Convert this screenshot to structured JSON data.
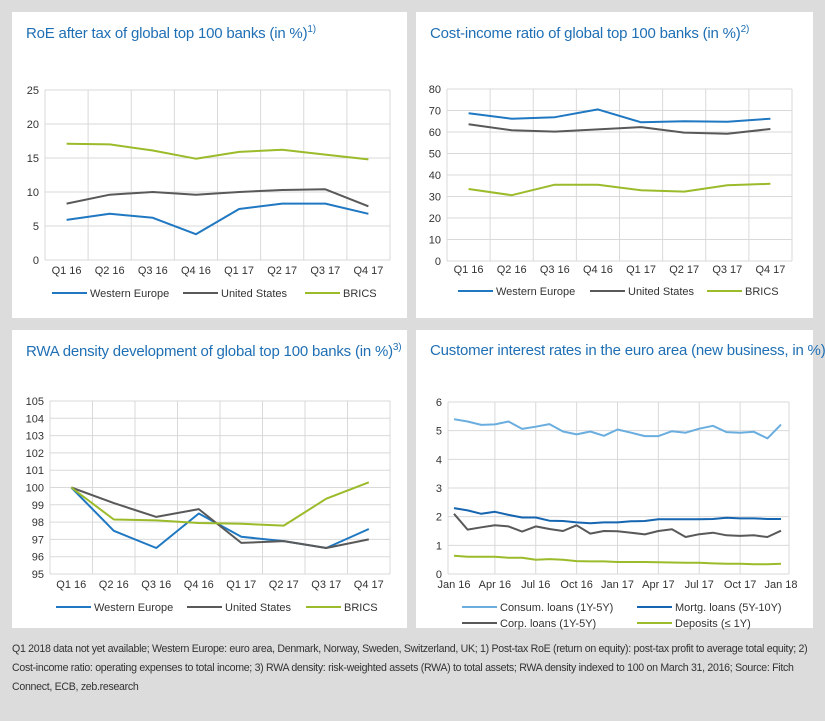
{
  "chart_data": [
    {
      "type": "line",
      "title": "RoE after tax of global top 100 banks (in %)",
      "title_note": "1)",
      "categories": [
        "Q1 16",
        "Q2 16",
        "Q3 16",
        "Q4 16",
        "Q1 17",
        "Q2 17",
        "Q3 17",
        "Q4 17"
      ],
      "ylim": [
        0,
        25
      ],
      "yticks": [
        0,
        5,
        10,
        15,
        20,
        25
      ],
      "grid": true,
      "legend": "bottom",
      "series": [
        {
          "name": "Western Europe",
          "color": "#1f78c1",
          "values": [
            5.9,
            6.8,
            6.2,
            3.8,
            7.5,
            8.3,
            8.3,
            6.8
          ]
        },
        {
          "name": "United States",
          "color": "#595959",
          "values": [
            8.3,
            9.6,
            10.0,
            9.6,
            10.0,
            10.3,
            10.4,
            7.9
          ]
        },
        {
          "name": "BRICS",
          "color": "#9bbb2a",
          "values": [
            17.1,
            17.0,
            16.1,
            14.9,
            15.9,
            16.2,
            15.5,
            14.8
          ]
        }
      ]
    },
    {
      "type": "line",
      "title": "Cost-income ratio of global top 100 banks (in %)",
      "title_note": "2)",
      "categories": [
        "Q1 16",
        "Q2 16",
        "Q3 16",
        "Q4 16",
        "Q1 17",
        "Q2 17",
        "Q3 17",
        "Q4 17"
      ],
      "ylim": [
        0,
        80
      ],
      "yticks": [
        0,
        10,
        20,
        30,
        40,
        50,
        60,
        70,
        80
      ],
      "grid": true,
      "legend": "bottom",
      "series": [
        {
          "name": "Western Europe",
          "color": "#1f78c1",
          "values": [
            68.7,
            66.2,
            66.9,
            70.5,
            64.5,
            65.0,
            64.8,
            66.2
          ]
        },
        {
          "name": "United States",
          "color": "#595959",
          "values": [
            63.6,
            60.8,
            60.2,
            61.2,
            62.3,
            59.7,
            59.2,
            61.4
          ]
        },
        {
          "name": "BRICS",
          "color": "#9bbb2a",
          "values": [
            33.5,
            30.6,
            35.5,
            35.5,
            32.9,
            32.3,
            35.2,
            35.9
          ]
        }
      ]
    },
    {
      "type": "line",
      "title": "RWA density development of global top 100 banks (in %)",
      "title_note": "3)",
      "categories": [
        "Q1 16",
        "Q2 16",
        "Q3 16",
        "Q4 16",
        "Q1 17",
        "Q2 17",
        "Q3 17",
        "Q4 17"
      ],
      "ylim": [
        95,
        105
      ],
      "yticks": [
        95,
        96,
        97,
        98,
        99,
        100,
        101,
        102,
        103,
        104,
        105
      ],
      "grid": true,
      "legend": "bottom",
      "series": [
        {
          "name": "Western Europe",
          "color": "#1f78c1",
          "values": [
            100,
            97.5,
            96.5,
            98.5,
            97.15,
            96.9,
            96.5,
            97.6
          ]
        },
        {
          "name": "United States",
          "color": "#595959",
          "values": [
            100,
            99.1,
            98.3,
            98.75,
            96.8,
            96.9,
            96.5,
            97.0
          ]
        },
        {
          "name": "BRICS",
          "color": "#9bbb2a",
          "values": [
            100,
            98.15,
            98.1,
            97.95,
            97.9,
            97.8,
            99.35,
            100.3
          ]
        }
      ]
    },
    {
      "type": "line",
      "title": "Customer interest rates in the euro area (new business, in %)",
      "title_note": "",
      "x": [
        "Jan 16",
        "Feb 16",
        "Mar 16",
        "Apr 16",
        "May 16",
        "Jun 16",
        "Jul 16",
        "Aug 16",
        "Sep 16",
        "Oct 16",
        "Nov 16",
        "Dec 16",
        "Jan 17",
        "Feb 17",
        "Mar 17",
        "Apr 17",
        "May 17",
        "Jun 17",
        "Jul 17",
        "Aug 17",
        "Sep 17",
        "Oct 17",
        "Nov 17",
        "Dec 17",
        "Jan 18"
      ],
      "xtick_labels": [
        "Jan 16",
        "Apr 16",
        "Jul 16",
        "Oct 16",
        "Jan 17",
        "Apr 17",
        "Jul 17",
        "Oct 17",
        "Jan 18"
      ],
      "ylim": [
        0,
        6
      ],
      "yticks": [
        0,
        1,
        2,
        3,
        4,
        5,
        6
      ],
      "grid": true,
      "legend": "bottom",
      "series": [
        {
          "name": "Consum. loans (1Y-5Y)",
          "color": "#6aaee0",
          "values": [
            5.4,
            5.32,
            5.2,
            5.22,
            5.32,
            5.06,
            5.14,
            5.23,
            4.97,
            4.87,
            4.97,
            4.82,
            5.04,
            4.93,
            4.81,
            4.81,
            4.98,
            4.93,
            5.07,
            5.17,
            4.95,
            4.93,
            4.96,
            4.73,
            5.21
          ]
        },
        {
          "name": "Mortg. loans (5Y-10Y)",
          "color": "#1565b0",
          "values": [
            2.3,
            2.22,
            2.1,
            2.17,
            2.06,
            1.97,
            1.97,
            1.86,
            1.85,
            1.8,
            1.77,
            1.8,
            1.8,
            1.84,
            1.85,
            1.91,
            1.91,
            1.91,
            1.91,
            1.92,
            1.96,
            1.94,
            1.94,
            1.92,
            1.92
          ]
        },
        {
          "name": "Corp. loans (1Y-5Y)",
          "color": "#595959",
          "values": [
            2.1,
            1.55,
            1.63,
            1.7,
            1.66,
            1.48,
            1.66,
            1.57,
            1.5,
            1.7,
            1.41,
            1.5,
            1.49,
            1.44,
            1.38,
            1.5,
            1.56,
            1.29,
            1.39,
            1.44,
            1.35,
            1.33,
            1.35,
            1.29,
            1.51
          ]
        },
        {
          "name": "Deposits (≤ 1Y)",
          "color": "#9bbb2a",
          "values": [
            0.64,
            0.6,
            0.6,
            0.6,
            0.57,
            0.57,
            0.5,
            0.52,
            0.5,
            0.45,
            0.44,
            0.44,
            0.42,
            0.42,
            0.42,
            0.41,
            0.4,
            0.39,
            0.39,
            0.37,
            0.36,
            0.36,
            0.34,
            0.34,
            0.36
          ]
        }
      ]
    }
  ],
  "footnote": "Q1 2018 data not yet available; Western Europe: euro area, Denmark, Norway, Sweden, Switzerland, UK; 1) Post-tax RoE (return on equity): post-tax profit to average total equity; 2) Cost-income ratio: operating expenses to total income; 3) RWA density: risk-weighted assets (RWA) to total assets; RWA density indexed to 100 on March 31, 2016; Source: Fitch Connect, ECB, zeb.research"
}
